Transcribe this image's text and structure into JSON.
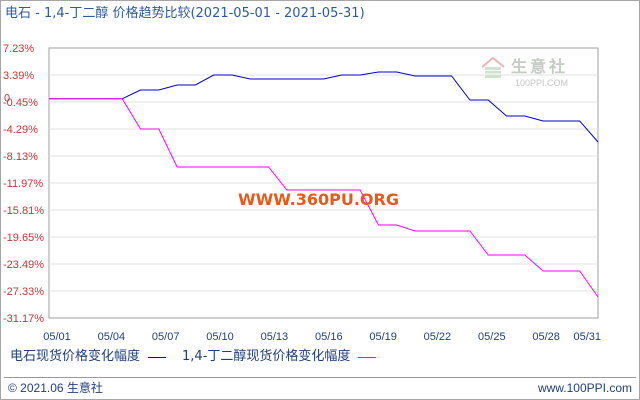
{
  "chart_data": {
    "type": "line",
    "title": "电石 - 1,4-丁二醇 价格趋势比较(2021-05-01 - 2021-05-31)",
    "x": [
      "05/01",
      "05/02",
      "05/03",
      "05/04",
      "05/05",
      "05/06",
      "05/07",
      "05/08",
      "05/09",
      "05/10",
      "05/11",
      "05/12",
      "05/13",
      "05/14",
      "05/15",
      "05/16",
      "05/17",
      "05/18",
      "05/19",
      "05/20",
      "05/21",
      "05/22",
      "05/23",
      "05/24",
      "05/25",
      "05/26",
      "05/27",
      "05/28",
      "05/29",
      "05/30",
      "05/31"
    ],
    "x_ticks": [
      "05/01",
      "05/04",
      "05/07",
      "05/10",
      "05/13",
      "05/16",
      "05/19",
      "05/22",
      "05/25",
      "05/28",
      "05/31"
    ],
    "y_ticks": [
      "7.23%",
      "3.39%",
      "-0.45%",
      "-4.29%",
      "-8.13%",
      "-11.97%",
      "-15.81%",
      "-19.65%",
      "-23.49%",
      "-27.33%",
      "-31.17%"
    ],
    "zero_tick": "0",
    "ylim": [
      -31.17,
      7.23
    ],
    "grid": "horizontal",
    "legend": "bottom",
    "series": [
      {
        "name": "电石现货价格变化幅度",
        "color": "#0000cc",
        "values": [
          0,
          0,
          0,
          0,
          0,
          1.26,
          1.26,
          1.97,
          1.97,
          3.39,
          3.39,
          2.82,
          2.82,
          2.82,
          2.82,
          2.82,
          3.39,
          3.39,
          3.82,
          3.82,
          3.25,
          3.25,
          3.25,
          -0.17,
          -0.17,
          -2.44,
          -2.44,
          -3.15,
          -3.15,
          -3.15,
          -6.14
        ]
      },
      {
        "name": "1,4-丁二醇现货价格变化幅度",
        "color": "#ff00ff",
        "values": [
          0,
          0,
          0,
          0,
          0,
          -4.29,
          -4.29,
          -9.7,
          -9.7,
          -9.7,
          -9.7,
          -9.7,
          -9.7,
          -12.97,
          -12.97,
          -12.97,
          -12.97,
          -12.97,
          -17.95,
          -17.95,
          -18.8,
          -18.8,
          -18.8,
          -18.8,
          -22.21,
          -22.21,
          -22.21,
          -24.49,
          -24.49,
          -24.49,
          -28.19
        ]
      }
    ]
  },
  "logo": {
    "name": "生意社",
    "domain": "100PPI.COM"
  },
  "watermark": "WWW.360PU.ORG",
  "footer": {
    "copyright": "© 2021.06 生意社",
    "site": "www.100PPI.com"
  }
}
